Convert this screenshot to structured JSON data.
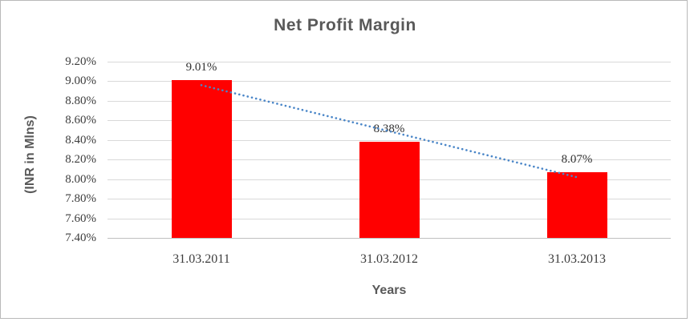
{
  "chart_data": {
    "type": "bar",
    "title": "Net Profit Margin",
    "xlabel": "Years",
    "ylabel": "(INR in Mlns)",
    "categories": [
      "31.03.2011",
      "31.03.2012",
      "31.03.2013"
    ],
    "values": [
      9.01,
      8.38,
      8.07
    ],
    "value_labels": [
      "9.01%",
      "8.38%",
      "8.07%"
    ],
    "unit": "percent",
    "ylim": [
      7.4,
      9.2
    ],
    "ytick_values": [
      9.2,
      9.0,
      8.8,
      8.6,
      8.4,
      8.2,
      8.0,
      7.8,
      7.6,
      7.4
    ],
    "ytick_labels": [
      "9.20%",
      "9.00%",
      "8.80%",
      "8.60%",
      "8.40%",
      "8.20%",
      "8.00%",
      "7.80%",
      "7.60%",
      "7.40%"
    ],
    "grid": true,
    "legend": "none",
    "bar_color": "#FF0000",
    "trendline": {
      "type": "linear",
      "style": "dotted",
      "color": "#4A86C8",
      "start_value": 8.96,
      "end_value": 8.02
    }
  },
  "colors": {
    "title_text": "#595959",
    "axis_text": "#3D3D3D",
    "gridline": "#D9D9D9",
    "axis_base_line": "#BFBFBF",
    "frame_border": "#B9B9B9",
    "background": "#FFFFFF"
  }
}
